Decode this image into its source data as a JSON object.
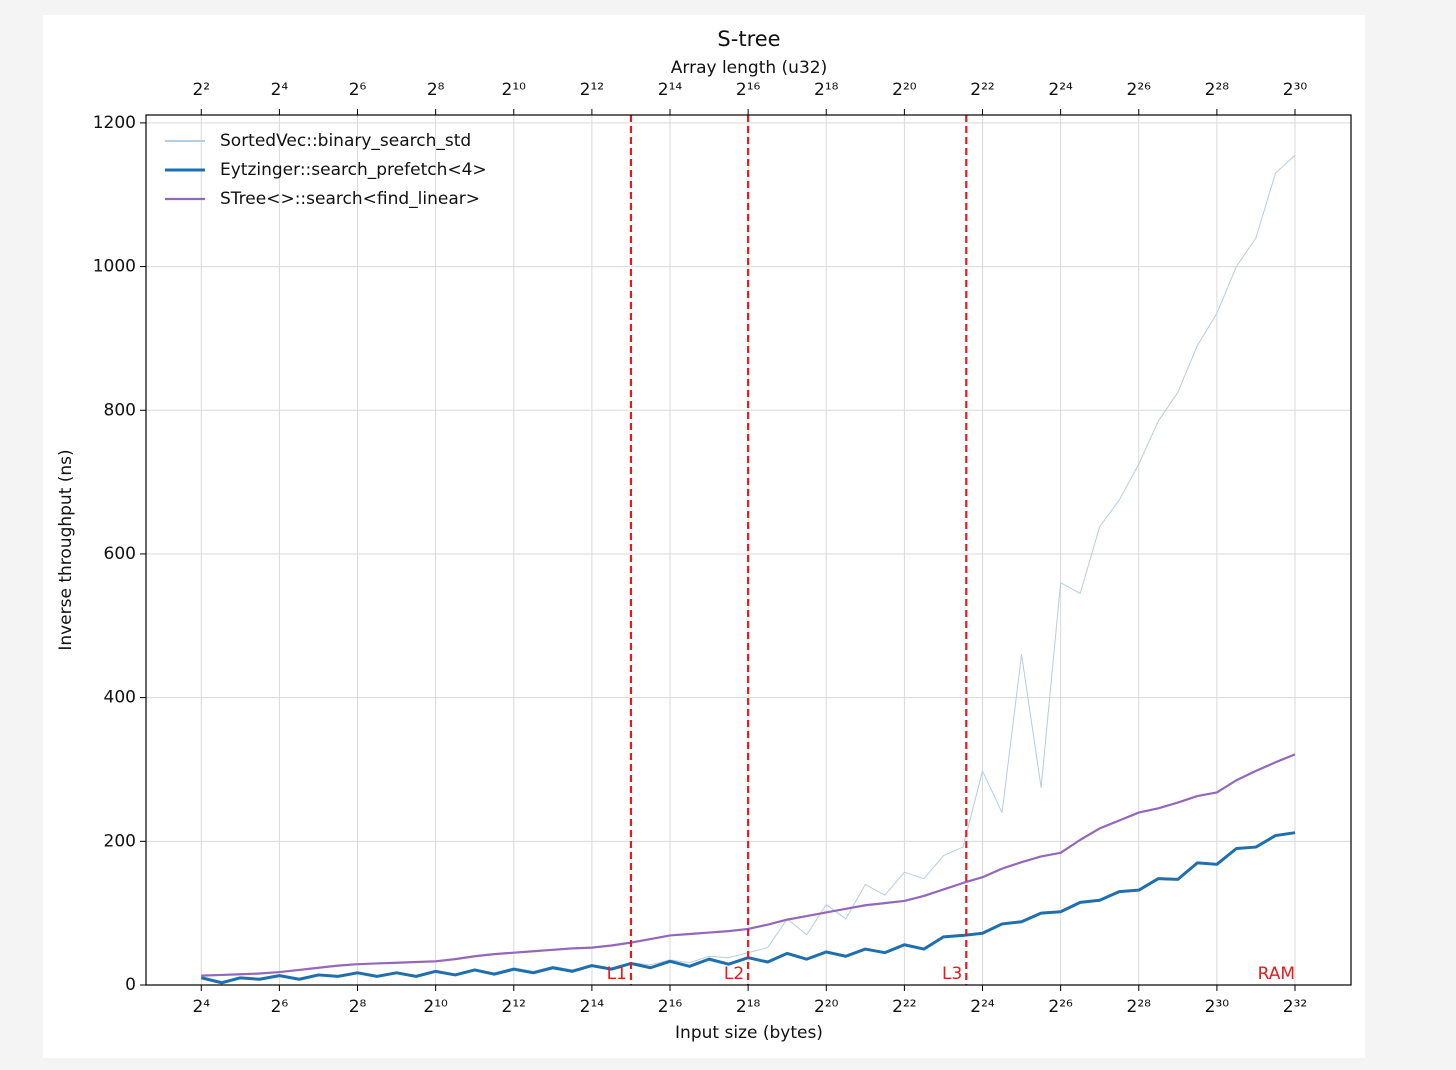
{
  "chart_data": {
    "type": "line",
    "title": "S-tree",
    "xlabel": "Input size (bytes)",
    "x2label": "Array length (u32)",
    "ylabel": "Inverse throughput (ns)",
    "xscale": "log",
    "xbase": 2,
    "xlim": [
      6,
      11600000000
    ],
    "x2lim": [
      1.5,
      2900000000
    ],
    "ylim": [
      0,
      1211
    ],
    "grid": true,
    "legend": "upper left",
    "xticks": [
      {
        "value": 16,
        "label": "2⁴"
      },
      {
        "value": 64,
        "label": "2⁶"
      },
      {
        "value": 256,
        "label": "2⁸"
      },
      {
        "value": 1024,
        "label": "2¹⁰"
      },
      {
        "value": 4096,
        "label": "2¹²"
      },
      {
        "value": 16384,
        "label": "2¹⁴"
      },
      {
        "value": 65536,
        "label": "2¹⁶"
      },
      {
        "value": 262144,
        "label": "2¹⁸"
      },
      {
        "value": 1048576,
        "label": "2²⁰"
      },
      {
        "value": 4194304,
        "label": "2²²"
      },
      {
        "value": 16777216,
        "label": "2²⁴"
      },
      {
        "value": 67108864,
        "label": "2²⁶"
      },
      {
        "value": 268435456,
        "label": "2²⁸"
      },
      {
        "value": 1073741824,
        "label": "2³⁰"
      },
      {
        "value": 4294967296,
        "label": "2³²"
      }
    ],
    "x2ticks": [
      {
        "value": 4,
        "label": "2²"
      },
      {
        "value": 16,
        "label": "2⁴"
      },
      {
        "value": 64,
        "label": "2⁶"
      },
      {
        "value": 256,
        "label": "2⁸"
      },
      {
        "value": 1024,
        "label": "2¹⁰"
      },
      {
        "value": 4096,
        "label": "2¹²"
      },
      {
        "value": 16384,
        "label": "2¹⁴"
      },
      {
        "value": 65536,
        "label": "2¹⁶"
      },
      {
        "value": 262144,
        "label": "2¹⁸"
      },
      {
        "value": 1048576,
        "label": "2²⁰"
      },
      {
        "value": 4194304,
        "label": "2²²"
      },
      {
        "value": 16777216,
        "label": "2²⁴"
      },
      {
        "value": 67108864,
        "label": "2²⁶"
      },
      {
        "value": 268435456,
        "label": "2²⁸"
      },
      {
        "value": 1073741824,
        "label": "2³⁰"
      }
    ],
    "yticks": [
      0,
      200,
      400,
      600,
      800,
      1000,
      1200
    ],
    "markers": [
      {
        "label": "L1",
        "x": 32768,
        "line": true
      },
      {
        "label": "L2",
        "x": 262144,
        "line": true
      },
      {
        "label": "L3",
        "x": 12582912,
        "line": true
      },
      {
        "label": "RAM",
        "x": 4294967296,
        "line": false
      }
    ],
    "marker_color": "#e41a1c",
    "x": [
      16,
      23,
      32,
      45,
      64,
      91,
      128,
      181,
      256,
      362,
      512,
      724,
      1024,
      1448,
      2048,
      2896,
      4096,
      5793,
      8192,
      11585,
      16384,
      23170,
      32768,
      46341,
      65536,
      92682,
      131072,
      185364,
      262144,
      370728,
      524288,
      741455,
      1048576,
      1482910,
      2097152,
      2965821,
      4194304,
      5931642,
      8388608,
      11863283,
      16777216,
      23726566,
      33554432,
      47453133,
      67108864,
      94906266,
      134217728,
      189812531,
      268435456,
      379625062,
      536870912,
      759250125,
      1073741824,
      1518500250,
      2147483648,
      3037000500,
      4294967296
    ],
    "series": [
      {
        "name": "SortedVec::binary_search_std",
        "color": "#b3cde3",
        "width": 1,
        "values": [
          12,
          5,
          11,
          8,
          14,
          9,
          15,
          12,
          18,
          13,
          18,
          13,
          20,
          15,
          22,
          17,
          24,
          19,
          26,
          21,
          28,
          24,
          31,
          28,
          35,
          31,
          40,
          38,
          45,
          52,
          92,
          70,
          112,
          92,
          140,
          125,
          157,
          148,
          180,
          192,
          298,
          240,
          460,
          275,
          560,
          545,
          638,
          675,
          725,
          785,
          825,
          890,
          935,
          1000,
          1040,
          1130,
          1155
        ]
      },
      {
        "name": "Eytzinger::search_prefetch<4>",
        "color": "#1f6fae",
        "width": 3,
        "values": [
          10,
          3,
          10,
          8,
          13,
          8,
          14,
          12,
          17,
          12,
          17,
          12,
          19,
          14,
          21,
          15,
          22,
          17,
          24,
          19,
          27,
          22,
          30,
          24,
          33,
          26,
          36,
          29,
          38,
          32,
          44,
          36,
          46,
          40,
          50,
          45,
          56,
          50,
          67,
          69,
          72,
          85,
          88,
          100,
          102,
          115,
          118,
          130,
          132,
          148,
          147,
          170,
          168,
          190,
          192,
          208,
          212
        ]
      },
      {
        "name": "STree<>::search<find_linear>",
        "color": "#9467bd",
        "width": 2.2,
        "values": [
          13,
          14,
          15,
          16,
          18,
          21,
          24,
          27,
          29,
          30,
          31,
          32,
          33,
          36,
          40,
          43,
          45,
          47,
          49,
          51,
          52,
          55,
          59,
          64,
          69,
          71,
          73,
          75,
          78,
          84,
          91,
          96,
          101,
          106,
          111,
          114,
          117,
          124,
          133,
          142,
          150,
          162,
          171,
          179,
          184,
          202,
          218,
          229,
          240,
          246,
          254,
          263,
          268,
          285,
          298,
          310,
          321
        ]
      }
    ]
  }
}
